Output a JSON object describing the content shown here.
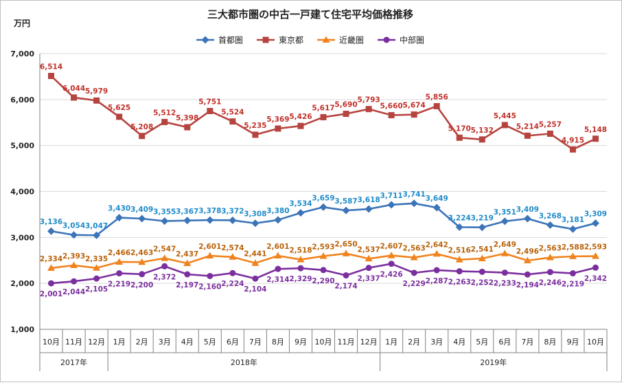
{
  "chart_data": {
    "type": "line",
    "title": "三大都市圏の中古一戸建て住宅平均価格推移",
    "ylabel": "万円",
    "xlabel": "",
    "ylim": [
      1000,
      7000
    ],
    "yticks": [
      1000,
      2000,
      3000,
      4000,
      5000,
      6000,
      7000
    ],
    "ytick_labels": [
      "1,000",
      "2,000",
      "3,000",
      "4,000",
      "5,000",
      "6,000",
      "7,000"
    ],
    "categories": [
      "10月",
      "11月",
      "12月",
      "1月",
      "2月",
      "3月",
      "4月",
      "5月",
      "6月",
      "7月",
      "8月",
      "9月",
      "10月",
      "11月",
      "12月",
      "1月",
      "2月",
      "3月",
      "4月",
      "5月",
      "6月",
      "7月",
      "8月",
      "9月",
      "10月"
    ],
    "year_groups": [
      {
        "label": "2017年",
        "start": 0,
        "end": 2
      },
      {
        "label": "2018年",
        "start": 3,
        "end": 14
      },
      {
        "label": "2019年",
        "start": 15,
        "end": 24
      }
    ],
    "legend_position": "top-center",
    "series": [
      {
        "name": "首都圏",
        "color": "#3B74B8",
        "label_color": "#1F8BC9",
        "marker": "diamond",
        "values": [
          3136,
          3054,
          3047,
          3430,
          3409,
          3355,
          3367,
          3378,
          3372,
          3308,
          3380,
          3534,
          3659,
          3587,
          3618,
          3711,
          3741,
          3649,
          3224,
          3219,
          3351,
          3409,
          3268,
          3181,
          3309
        ],
        "labels": [
          "3,136",
          "3,054",
          "3,047",
          "3,430",
          "3,409",
          "3,355",
          "3,367",
          "3,378",
          "3,372",
          "3,308",
          "3,380",
          "3,534",
          "3,659",
          "3,587",
          "3,618",
          "3,711",
          "3,741",
          "3,649",
          "3,224",
          "3,219",
          "3,351",
          "3,409",
          "3,268",
          "3,181",
          "3,309"
        ]
      },
      {
        "name": "東京都",
        "color": "#B5443F",
        "label_color": "#C0302A",
        "marker": "square",
        "values": [
          6514,
          6044,
          5979,
          5625,
          5208,
          5512,
          5398,
          5751,
          5524,
          5235,
          5369,
          5426,
          5617,
          5690,
          5793,
          5660,
          5674,
          5856,
          5170,
          5132,
          5445,
          5214,
          5257,
          4915,
          5148
        ],
        "labels": [
          "6,514",
          "6,044",
          "5,979",
          "5,625",
          "5,208",
          "5,512",
          "5,398",
          "5,751",
          "5,524",
          "5,235",
          "5,369",
          "5,426",
          "5,617",
          "5,690",
          "5,793",
          "5,660",
          "5,674",
          "5,856",
          "5,170",
          "5,132",
          "5,445",
          "5,214",
          "5,257",
          "4,915",
          "5,148"
        ]
      },
      {
        "name": "近畿圏",
        "color": "#F0831E",
        "label_color": "#B8620A",
        "marker": "triangle",
        "values": [
          2334,
          2393,
          2335,
          2466,
          2463,
          2547,
          2437,
          2601,
          2574,
          2441,
          2601,
          2518,
          2593,
          2650,
          2537,
          2607,
          2563,
          2642,
          2516,
          2541,
          2649,
          2496,
          2563,
          2588,
          2593
        ],
        "labels": [
          "2,334",
          "2,393",
          "2,335",
          "2,466",
          "2,463",
          "2,547",
          "2,437",
          "2,601",
          "2,574",
          "2,441",
          "2,601",
          "2,518",
          "2,593",
          "2,650",
          "2,537",
          "2,607",
          "2,563",
          "2,642",
          "2,516",
          "2,541",
          "2,649",
          "2,496",
          "2,563",
          "2,588",
          "2,593"
        ]
      },
      {
        "name": "中部圏",
        "color": "#7B2F9E",
        "label_color": "#7B2F9E",
        "marker": "circle",
        "values": [
          2001,
          2044,
          2105,
          2219,
          2200,
          2372,
          2197,
          2160,
          2224,
          2104,
          2314,
          2329,
          2290,
          2174,
          2337,
          2426,
          2229,
          2287,
          2263,
          2252,
          2233,
          2194,
          2246,
          2219,
          2342
        ],
        "labels": [
          "2,001",
          "2,044",
          "2,105",
          "2,219",
          "2,200",
          "2,372",
          "2,197",
          "2,160",
          "2,224",
          "2,104",
          "2,314",
          "2,329",
          "2,290",
          "2,174",
          "2,337",
          "2,426",
          "2,229",
          "2,287",
          "2,263",
          "2,252",
          "2,233",
          "2,194",
          "2,246",
          "2,219",
          "2,342"
        ]
      }
    ]
  }
}
